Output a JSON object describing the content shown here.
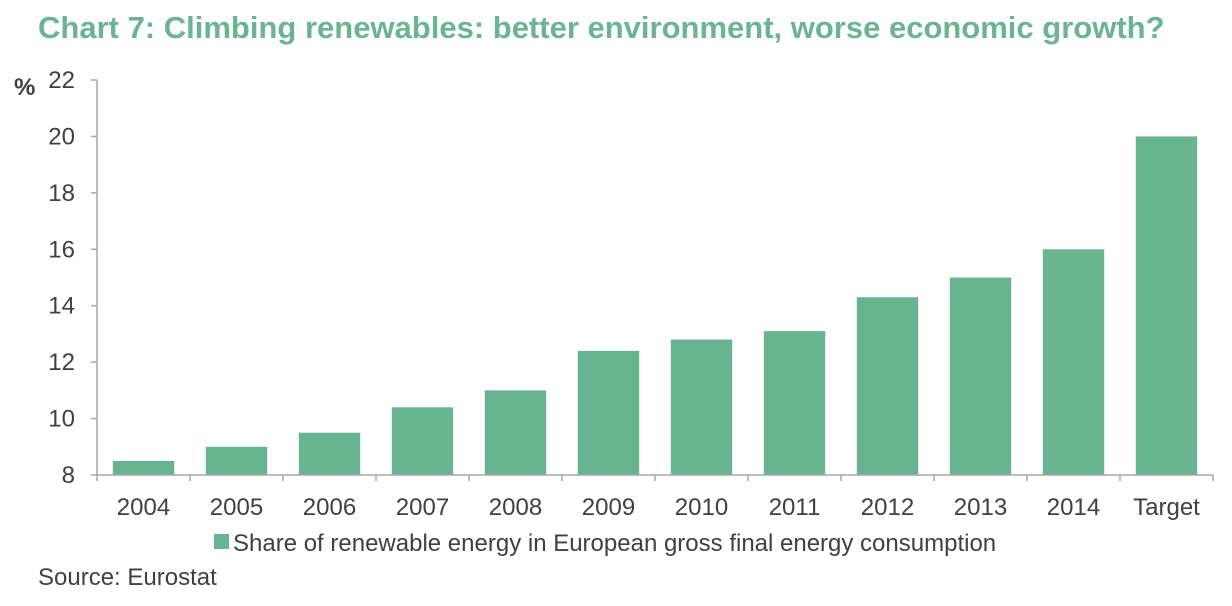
{
  "colors": {
    "title": "#6ab492",
    "bar": "#68b490",
    "axis": "#a6a6a6",
    "text": "#404040"
  },
  "chart_data": {
    "type": "bar",
    "title": "Chart 7: Climbing renewables: better environment, worse economic growth?",
    "ylabel": "%",
    "xlabel": "",
    "categories": [
      "2004",
      "2005",
      "2006",
      "2007",
      "2008",
      "2009",
      "2010",
      "2011",
      "2012",
      "2013",
      "2014",
      "Target"
    ],
    "series": [
      {
        "name": "Share of renewable energy in European gross final energy consumption",
        "values": [
          8.5,
          9.0,
          9.5,
          10.4,
          11.0,
          12.4,
          12.8,
          13.1,
          14.3,
          15.0,
          16.0,
          20.0
        ]
      }
    ],
    "ylim": [
      8,
      22
    ],
    "yticks": [
      8,
      10,
      12,
      14,
      16,
      18,
      20,
      22
    ],
    "grid": false,
    "legend": "bottom"
  },
  "source": "Source: Eurostat"
}
